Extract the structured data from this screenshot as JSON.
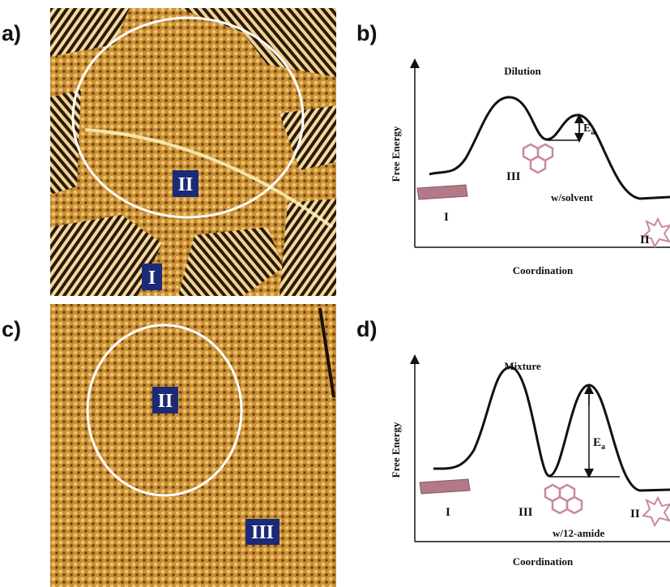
{
  "panels": [
    {
      "label": "a)",
      "markers": [
        "II",
        "I"
      ]
    },
    {
      "label": "b)",
      "title": "Dilution",
      "y_axis": "Free Energy",
      "x_axis": "Coordination",
      "barrier": "E",
      "barrier_sub": "a",
      "states": [
        "I",
        "III",
        "II"
      ],
      "note": "w/solvent"
    },
    {
      "label": "c)",
      "markers": [
        "II",
        "III"
      ]
    },
    {
      "label": "d)",
      "title": "Mixture",
      "y_axis": "Free Energy",
      "x_axis": "Coordination",
      "barrier": "E",
      "barrier_sub": "a",
      "states": [
        "I",
        "III",
        "II"
      ],
      "note": "w/12-amide"
    }
  ]
}
